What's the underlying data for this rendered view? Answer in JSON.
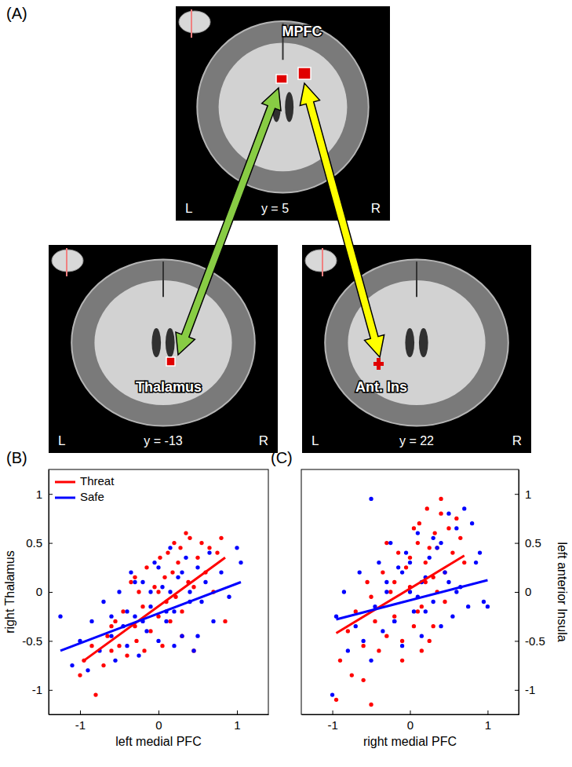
{
  "panel_a": {
    "label": "(A)",
    "images": [
      {
        "region": "MPFC",
        "slice": "y = 5",
        "left": "L",
        "right": "R"
      },
      {
        "region": "Thalamus",
        "slice": "y = -13",
        "left": "L",
        "right": "R"
      },
      {
        "region": "Ant. Ins",
        "slice": "y = 22",
        "left": "L",
        "right": "R"
      }
    ]
  },
  "chart_data": [
    {
      "type": "scatter",
      "title": "(B)",
      "x_label": "left medial PFC",
      "y_label": "right Thalamus",
      "xlim": [
        -1.4,
        1.4
      ],
      "ylim": [
        -1.25,
        1.25
      ],
      "xticks": [
        -1,
        0,
        1
      ],
      "yticks": [
        -1,
        -0.5,
        0,
        0.5,
        1
      ],
      "grid": false,
      "legend": "upper left",
      "marker": "circle",
      "series": [
        {
          "name": "Threat",
          "color": "#ff0000",
          "x": [
            -1.0,
            -0.95,
            -0.85,
            -0.8,
            -0.7,
            -0.65,
            -0.6,
            -0.55,
            -0.5,
            -0.45,
            -0.4,
            -0.35,
            -0.3,
            -0.28,
            -0.25,
            -0.2,
            -0.18,
            -0.15,
            -0.1,
            -0.05,
            0.0,
            0.02,
            0.05,
            0.08,
            0.1,
            0.12,
            0.15,
            0.18,
            0.2,
            0.22,
            0.25,
            0.28,
            0.3,
            0.35,
            0.38,
            0.4,
            0.45,
            0.5,
            0.55,
            0.6,
            0.65,
            0.7,
            0.75,
            0.8,
            0.85,
            -0.3,
            0.0,
            0.3,
            -0.6,
            0.45
          ],
          "values": [
            -0.85,
            -0.7,
            -0.55,
            -1.05,
            -0.75,
            -0.45,
            -0.6,
            -0.3,
            -0.55,
            -0.2,
            -0.65,
            0.1,
            -0.35,
            -0.5,
            0.0,
            -0.15,
            -0.6,
            0.25,
            -0.4,
            0.05,
            -0.25,
            0.35,
            -0.55,
            0.15,
            -0.1,
            0.4,
            -0.3,
            0.2,
            0.5,
            -0.05,
            0.3,
            0.45,
            -0.2,
            0.6,
            0.1,
            0.55,
            0.05,
            0.35,
            0.5,
            0.2,
            0.45,
            0.0,
            0.4,
            0.55,
            -0.3,
            0.15,
            0.0,
            -0.45,
            -0.35,
            -0.6
          ],
          "fit": {
            "x": [
              -0.95,
              0.85
            ],
            "y": [
              -0.7,
              0.35
            ]
          }
        },
        {
          "name": "Safe",
          "color": "#0000ff",
          "x": [
            -1.25,
            -1.1,
            -1.0,
            -0.9,
            -0.85,
            -0.75,
            -0.7,
            -0.6,
            -0.55,
            -0.5,
            -0.45,
            -0.4,
            -0.35,
            -0.3,
            -0.25,
            -0.2,
            -0.15,
            -0.1,
            -0.05,
            0.0,
            0.05,
            0.1,
            0.15,
            0.2,
            0.25,
            0.3,
            0.35,
            0.4,
            0.45,
            0.5,
            0.55,
            0.6,
            0.65,
            0.7,
            0.8,
            0.9,
            1.0,
            1.05,
            -0.2,
            0.1,
            -0.4,
            0.3,
            -0.1,
            0.2,
            -0.6,
            0.0,
            0.5,
            -0.3,
            0.15,
            0.4
          ],
          "values": [
            -0.25,
            -0.75,
            -0.5,
            -0.8,
            -0.3,
            -0.6,
            -0.1,
            -0.45,
            -0.7,
            0.0,
            -0.35,
            -0.55,
            0.2,
            -0.25,
            -0.65,
            0.1,
            -0.4,
            -0.15,
            0.3,
            -0.5,
            0.05,
            -0.3,
            0.45,
            -0.2,
            0.15,
            -0.45,
            0.35,
            0.0,
            -0.6,
            0.25,
            -0.1,
            0.1,
            0.4,
            -0.3,
            0.2,
            -0.05,
            0.45,
            0.3,
            -0.3,
            -0.2,
            -0.2,
            0.2,
            0.0,
            -0.55,
            -0.25,
            0.25,
            -0.45,
            0.1,
            0.0,
            -0.1
          ],
          "fit": {
            "x": [
              -1.25,
              1.05
            ],
            "y": [
              -0.6,
              0.1
            ]
          }
        }
      ]
    },
    {
      "type": "scatter",
      "title": "(C)",
      "x_label": "right medial PFC",
      "y_label": "left anterior Insula",
      "xlim": [
        -1.4,
        1.4
      ],
      "ylim": [
        -1.25,
        1.25
      ],
      "xticks": [
        -1,
        0,
        1
      ],
      "yticks": [
        -1,
        -0.5,
        0,
        0.5,
        1
      ],
      "grid": false,
      "legend": false,
      "marker": "circle",
      "series": [
        {
          "name": "Threat",
          "color": "#ff0000",
          "x": [
            -0.95,
            -0.9,
            -0.8,
            -0.75,
            -0.7,
            -0.6,
            -0.55,
            -0.5,
            -0.45,
            -0.4,
            -0.35,
            -0.3,
            -0.25,
            -0.2,
            -0.15,
            -0.1,
            -0.05,
            0.0,
            0.05,
            0.1,
            0.12,
            0.15,
            0.2,
            0.22,
            0.25,
            0.3,
            0.32,
            0.35,
            0.4,
            0.45,
            0.5,
            0.55,
            0.6,
            0.65,
            0.7,
            -0.5,
            -0.3,
            -0.1,
            0.0,
            0.1,
            0.2,
            0.3,
            0.4,
            -0.2,
            0.05,
            0.15,
            0.25,
            0.35,
            0.45,
            -0.6
          ],
          "values": [
            -1.1,
            -0.7,
            -0.4,
            -0.85,
            -0.2,
            -0.55,
            0.1,
            -1.15,
            -0.3,
            -0.6,
            0.2,
            -0.45,
            0.0,
            -0.25,
            0.4,
            -0.5,
            0.25,
            0.05,
            -0.35,
            0.5,
            0.7,
            -0.15,
            0.3,
            0.85,
            -0.5,
            0.15,
            0.6,
            0.45,
            0.95,
            0.2,
            0.65,
            0.4,
            0.75,
            0.55,
            0.3,
            -0.05,
            0.5,
            -0.7,
            0.35,
            -0.2,
            0.1,
            -0.35,
            0.8,
            0.1,
            0.65,
            -0.6,
            0.45,
            0.0,
            -0.1,
            -0.9
          ],
          "fit": {
            "x": [
              -0.95,
              0.7
            ],
            "y": [
              -0.42,
              0.37
            ]
          }
        },
        {
          "name": "Safe",
          "color": "#0000ff",
          "x": [
            -1.0,
            -0.95,
            -0.85,
            -0.8,
            -0.7,
            -0.65,
            -0.6,
            -0.5,
            -0.45,
            -0.4,
            -0.35,
            -0.3,
            -0.25,
            -0.2,
            -0.15,
            -0.1,
            -0.05,
            0.0,
            0.05,
            0.1,
            0.15,
            0.2,
            0.25,
            0.3,
            0.35,
            0.4,
            0.45,
            0.5,
            0.55,
            0.6,
            0.65,
            0.7,
            0.75,
            0.8,
            0.85,
            0.9,
            0.95,
            1.0,
            -0.3,
            -0.1,
            0.1,
            0.3,
            0.5,
            -0.5,
            0.0,
            0.2,
            0.4,
            0.6,
            -0.2,
            0.15
          ],
          "values": [
            -1.05,
            -0.25,
            0.0,
            -0.6,
            -0.35,
            0.2,
            -0.5,
            0.95,
            -0.15,
            0.3,
            -0.4,
            0.1,
            0.5,
            -0.3,
            0.25,
            -0.55,
            0.4,
            0.0,
            -0.2,
            0.6,
            -0.45,
            0.15,
            0.35,
            -0.1,
            0.45,
            -0.35,
            0.2,
            0.8,
            -0.25,
            0.65,
            0.05,
            0.85,
            -0.15,
            0.7,
            0.3,
            0.4,
            -0.1,
            -0.15,
            0.0,
            0.2,
            -0.05,
            0.55,
            0.1,
            -0.7,
            0.3,
            -0.2,
            0.5,
            0.0,
            -0.3,
            0.1
          ],
          "fit": {
            "x": [
              -0.95,
              1.0
            ],
            "y": [
              -0.28,
              0.12
            ]
          }
        }
      ]
    }
  ]
}
